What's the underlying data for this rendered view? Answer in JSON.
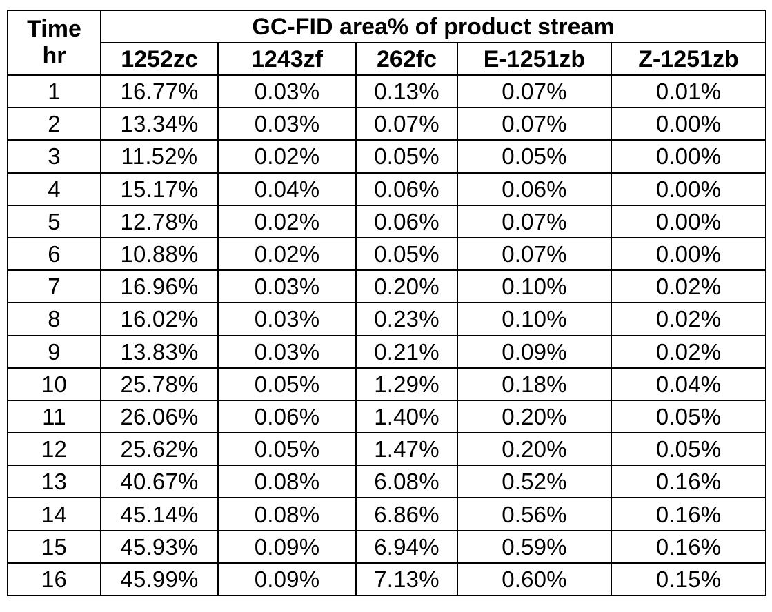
{
  "table": {
    "time_header_line1": "Time",
    "time_header_line2": "hr",
    "group_header": "GC-FID area% of product stream",
    "columns": [
      "1252zc",
      "1243zf",
      "262fc",
      "E-1251zb",
      "Z-1251zb"
    ],
    "rows": [
      [
        "1",
        "16.77%",
        "0.03%",
        "0.13%",
        "0.07%",
        "0.01%"
      ],
      [
        "2",
        "13.34%",
        "0.03%",
        "0.07%",
        "0.07%",
        "0.00%"
      ],
      [
        "3",
        "11.52%",
        "0.02%",
        "0.05%",
        "0.05%",
        "0.00%"
      ],
      [
        "4",
        "15.17%",
        "0.04%",
        "0.06%",
        "0.06%",
        "0.00%"
      ],
      [
        "5",
        "12.78%",
        "0.02%",
        "0.06%",
        "0.07%",
        "0.00%"
      ],
      [
        "6",
        "10.88%",
        "0.02%",
        "0.05%",
        "0.07%",
        "0.00%"
      ],
      [
        "7",
        "16.96%",
        "0.03%",
        "0.20%",
        "0.10%",
        "0.02%"
      ],
      [
        "8",
        "16.02%",
        "0.03%",
        "0.23%",
        "0.10%",
        "0.02%"
      ],
      [
        "9",
        "13.83%",
        "0.03%",
        "0.21%",
        "0.09%",
        "0.02%"
      ],
      [
        "10",
        "25.78%",
        "0.05%",
        "1.29%",
        "0.18%",
        "0.04%"
      ],
      [
        "11",
        "26.06%",
        "0.06%",
        "1.40%",
        "0.20%",
        "0.05%"
      ],
      [
        "12",
        "25.62%",
        "0.05%",
        "1.47%",
        "0.20%",
        "0.05%"
      ],
      [
        "13",
        "40.67%",
        "0.08%",
        "6.08%",
        "0.52%",
        "0.16%"
      ],
      [
        "14",
        "45.14%",
        "0.08%",
        "6.86%",
        "0.56%",
        "0.16%"
      ],
      [
        "15",
        "45.93%",
        "0.09%",
        "6.94%",
        "0.59%",
        "0.16%"
      ],
      [
        "16",
        "45.99%",
        "0.09%",
        "7.13%",
        "0.60%",
        "0.15%"
      ]
    ]
  }
}
